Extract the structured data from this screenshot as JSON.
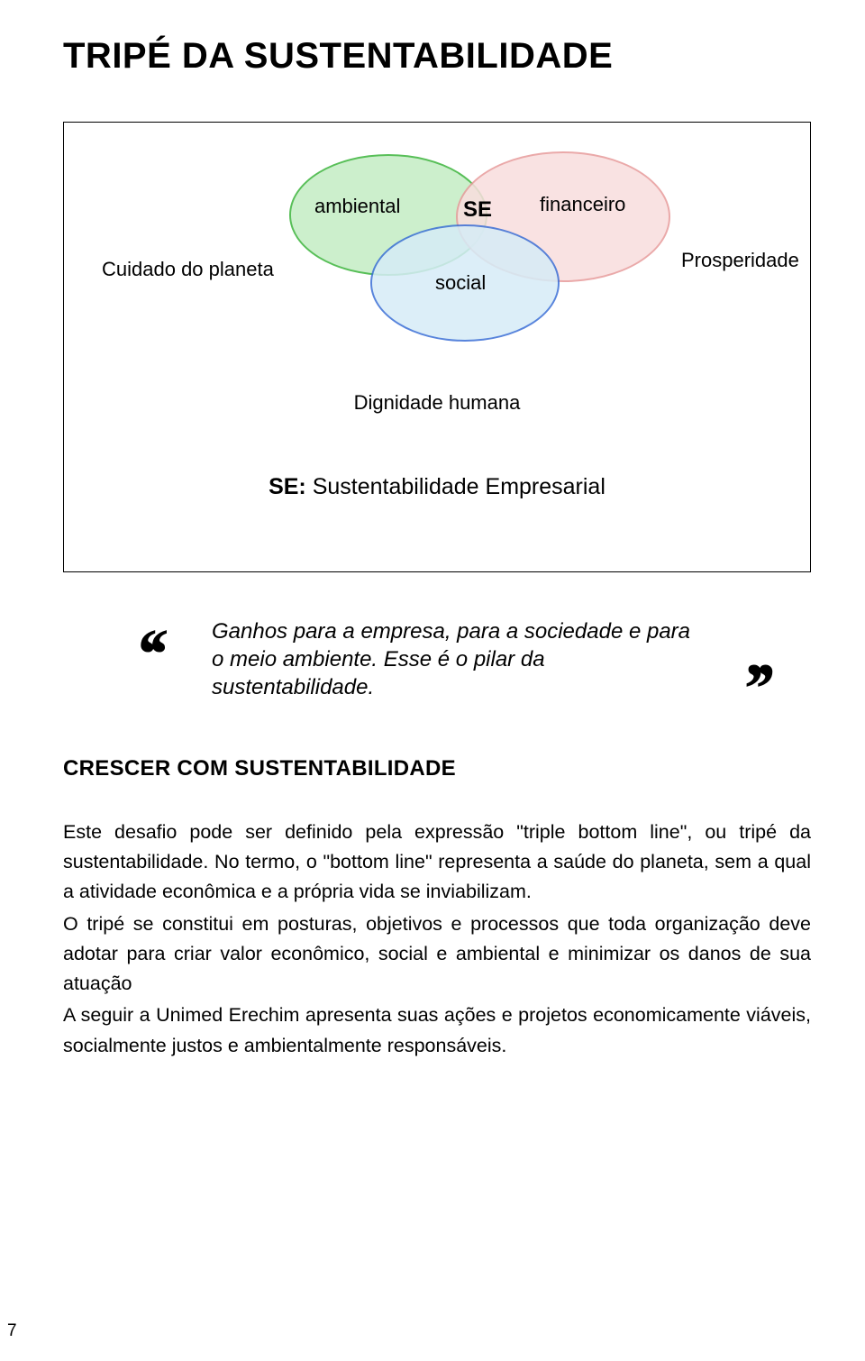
{
  "title": "TRIPÉ DA SUSTENTABILIDADE",
  "diagram": {
    "type": "venn",
    "ellipses": {
      "environmental": {
        "label": "ambiental",
        "fill_color": "#c4edc4",
        "border_color": "#3cb43c",
        "side_label": "Cuidado do planeta"
      },
      "financial": {
        "label": "financeiro",
        "fill_color": "#f9dede",
        "border_color": "#e79b9b",
        "side_label": "Prosperidade"
      },
      "social": {
        "label": "social",
        "fill_color": "#d6ecf7",
        "border_color": "#3b6fd6",
        "side_label": "Dignidade humana"
      }
    },
    "center_label": "SE",
    "legend_prefix": "SE:",
    "legend_text": " Sustentabilidade Empresarial",
    "label_fontsize": 22,
    "background_color": "#ffffff",
    "border_color": "#000000"
  },
  "quote": {
    "text": "Ganhos para a empresa, para a sociedade e para o meio ambiente. Esse é o pilar da sustentabilidade.",
    "open_mark": "‘‘",
    "close_mark": "’’",
    "font_style": "italic",
    "fontsize": 24
  },
  "section": {
    "heading": "CRESCER COM SUSTENTABILIDADE",
    "paragraphs": [
      "Este desafio pode ser definido pela expressão \"triple bottom line\", ou tripé da sustentabilidade. No termo, o \"bottom line\" representa a saúde do planeta, sem a qual a atividade econômica e a própria vida se inviabilizam.",
      "O tripé se constitui em posturas, objetivos e processos que toda organização deve adotar para criar valor econômico, social e ambiental e minimizar os danos de sua atuação",
      "A seguir a  Unimed Erechim apresenta suas ações e projetos economicamente viáveis, socialmente justos e ambientalmente responsáveis."
    ]
  },
  "page_number": "7",
  "colors": {
    "text": "#000000",
    "background": "#ffffff"
  },
  "typography": {
    "title_fontsize": 40,
    "body_fontsize": 21.5,
    "heading_fontsize": 24
  }
}
